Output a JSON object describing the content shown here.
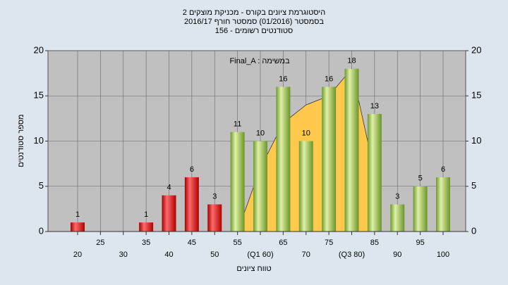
{
  "chart_data": {
    "type": "bar",
    "title": [
      "היסטוגרמת ציונים בקורס - מכניקת מוצקים 2",
      "בסמסטר  (01/2016)  סמסטר חורף 2016/17",
      "סטודנטים רשומים - 156"
    ],
    "annotation": "Final_A : במשימה",
    "x_label": "טווח ציונים",
    "y_label": "מספר סטודנטים",
    "categories": [
      "20",
      "25",
      "30",
      "35",
      "40",
      "45",
      "50",
      "55",
      "(Q1 60)",
      "65",
      "70",
      "75",
      "(Q3 80)",
      "85",
      "90",
      "95",
      "100"
    ],
    "values": [
      1,
      0,
      0,
      1,
      4,
      6,
      3,
      11,
      10,
      16,
      10,
      16,
      18,
      13,
      3,
      5,
      6
    ],
    "colors": [
      "red",
      "red",
      "red",
      "red",
      "red",
      "red",
      "red",
      "green",
      "green",
      "green",
      "green",
      "green",
      "green",
      "green",
      "green",
      "green",
      "green"
    ],
    "curve": {
      "color": "#ffc94d",
      "x": [
        55,
        60,
        65,
        70,
        75,
        80,
        85
      ],
      "values": [
        0,
        7,
        12,
        14,
        15,
        18,
        6.5
      ]
    },
    "ylim": [
      0,
      20
    ],
    "yticks": [
      0,
      5,
      10,
      15,
      20
    ],
    "grid": true
  }
}
